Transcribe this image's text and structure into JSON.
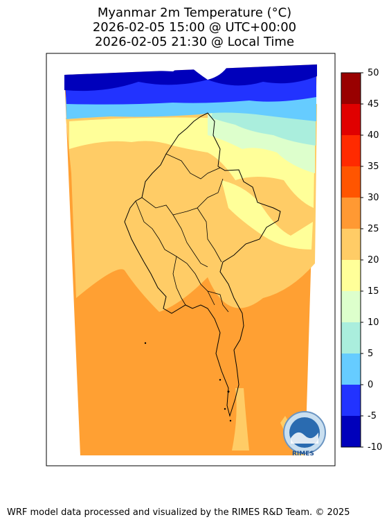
{
  "header": {
    "title_line1": "Myanmar 2m Temperature (°C)",
    "title_line2": "2026-02-05 15:00 @ UTC+00:00",
    "title_line3": "2026-02-05 21:30 @ Local Time"
  },
  "colorbar": {
    "ticks": [
      "50",
      "45",
      "40",
      "35",
      "30",
      "25",
      "20",
      "15",
      "10",
      "5",
      "0",
      "-5",
      "-10"
    ],
    "colors": [
      "#990000",
      "#e00000",
      "#ff2a00",
      "#ff5500",
      "#ff9933",
      "#ffcc66",
      "#ffff99",
      "#ddffcc",
      "#aaeedd",
      "#66ccff",
      "#2233ff",
      "#0000bb"
    ]
  },
  "logo": {
    "text": "RIMES"
  },
  "footer": {
    "credit": "WRF model data processed and visualized by the RIMES R&D Team. © 2025"
  }
}
